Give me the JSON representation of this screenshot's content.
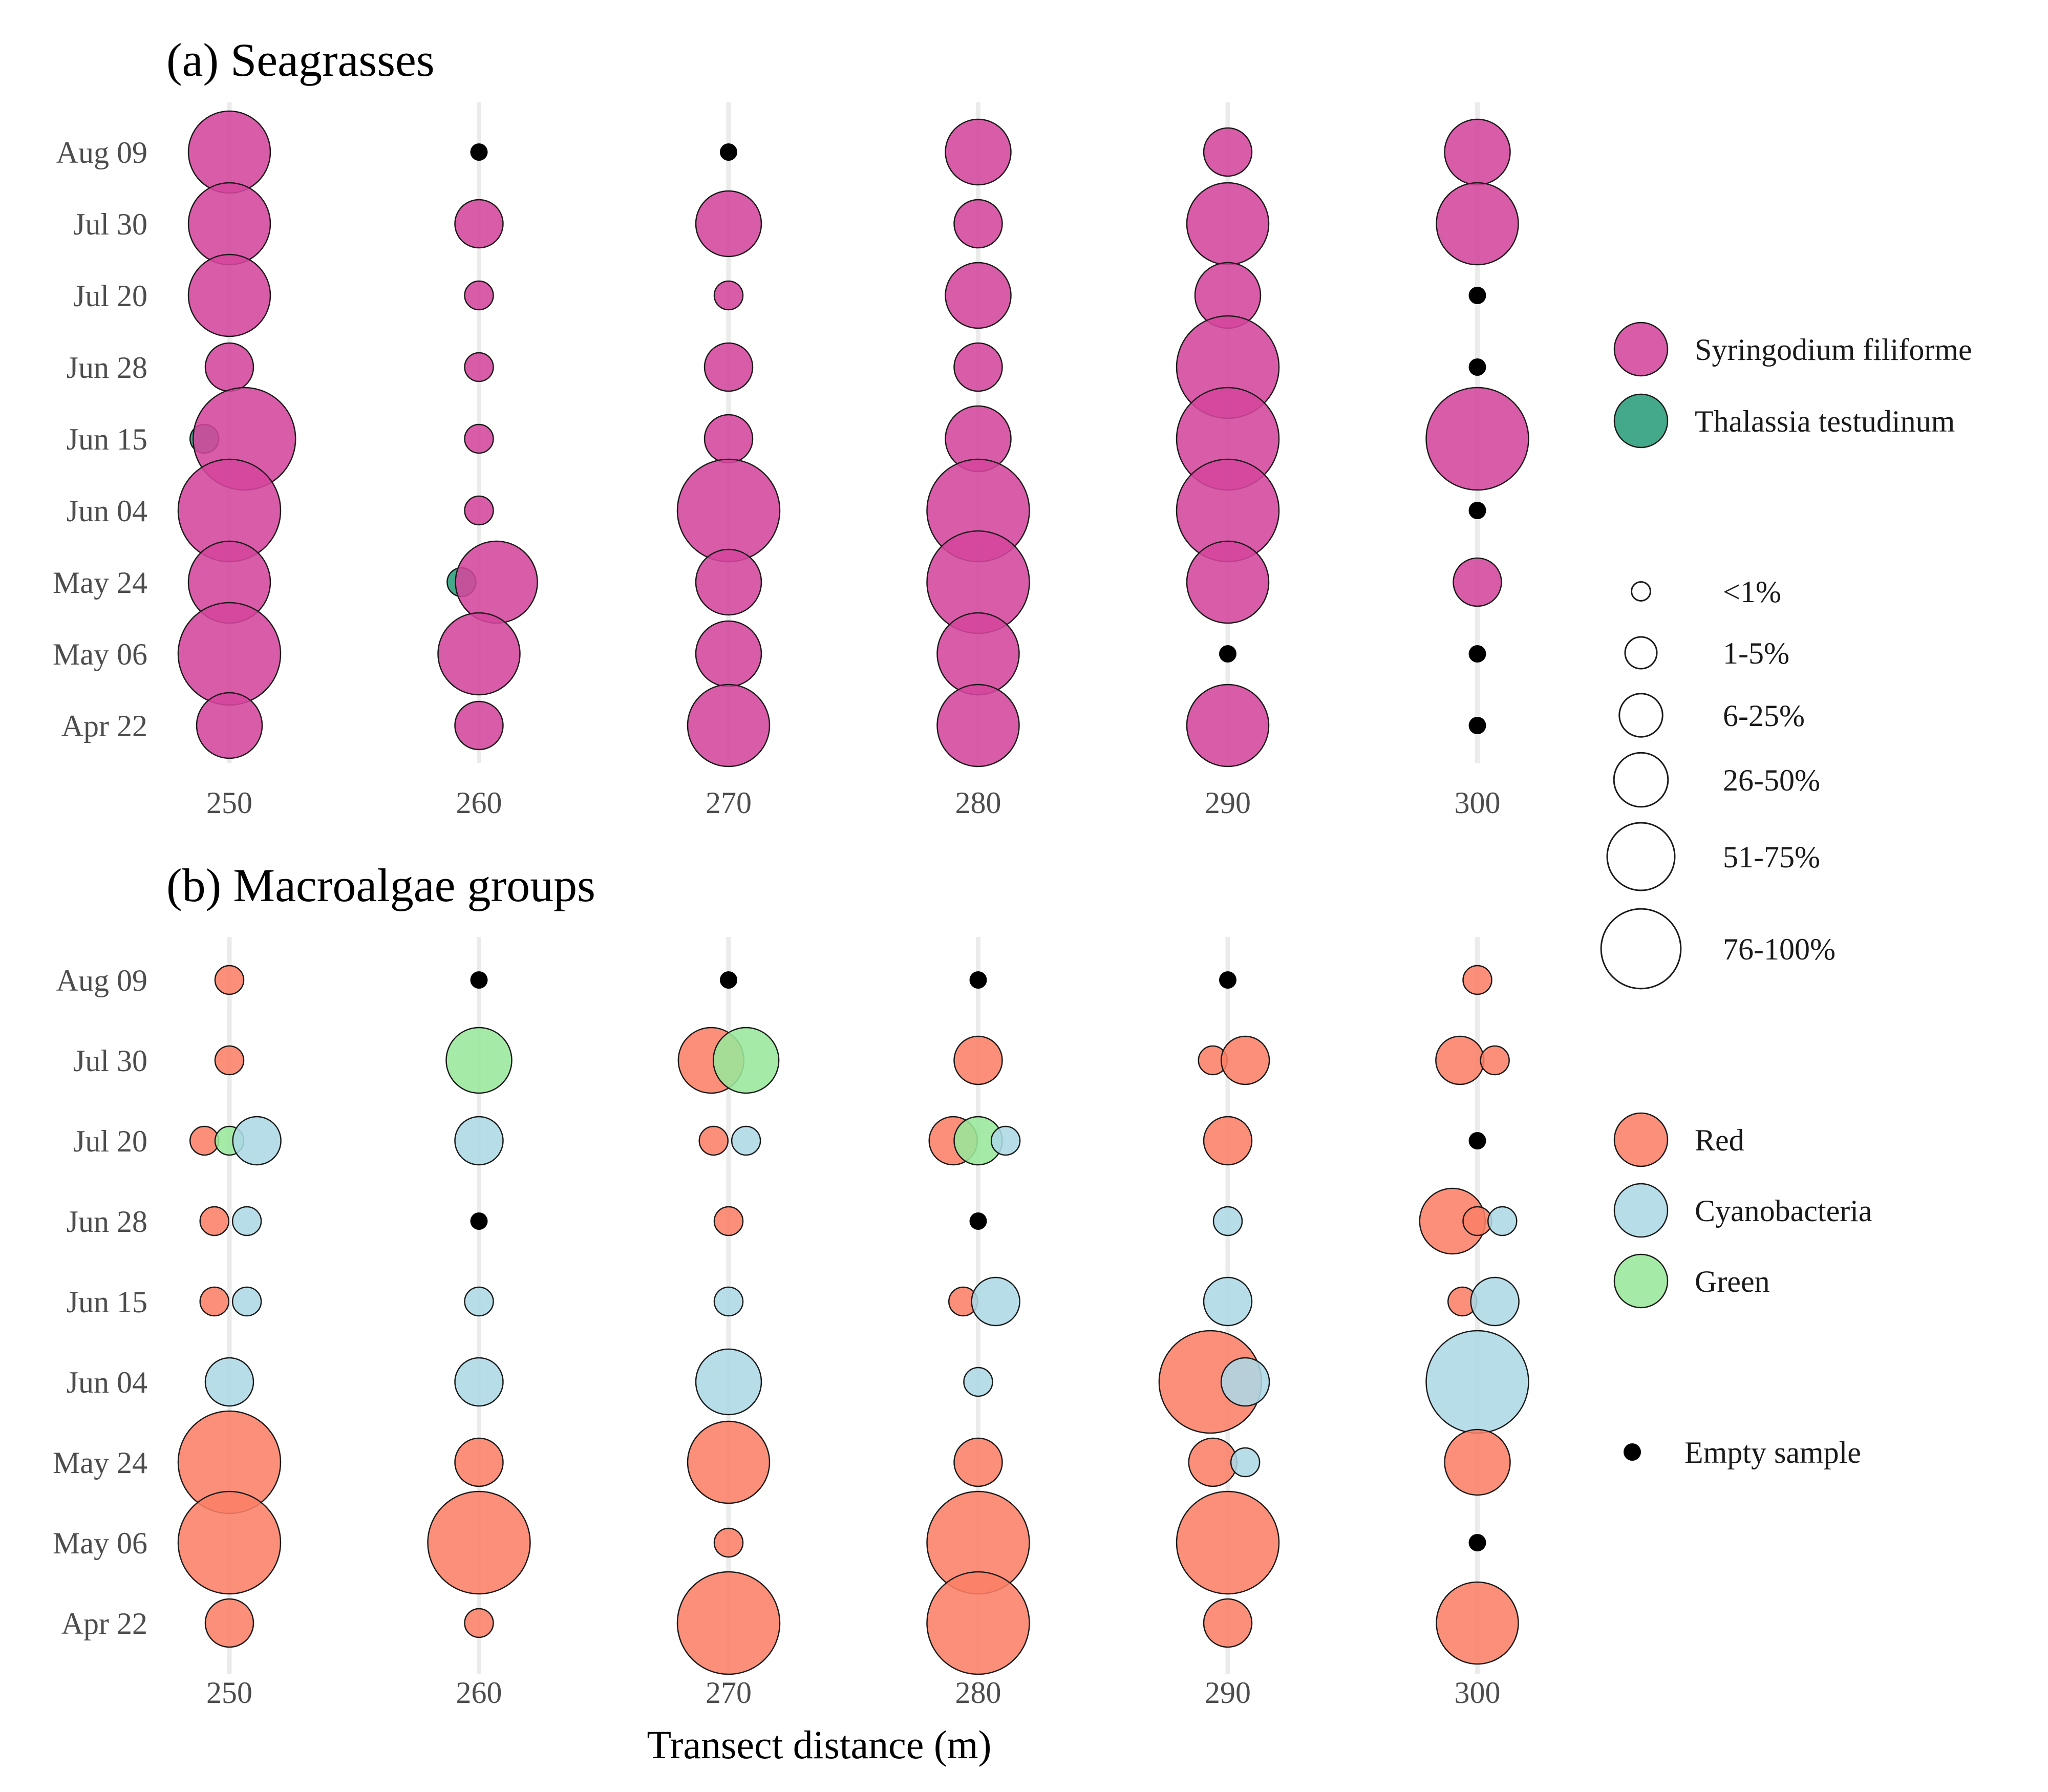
{
  "chart_data": [
    {
      "type": "scatter",
      "title": "(a) Seagrasses",
      "x_ticks": [
        "250",
        "260",
        "270",
        "280",
        "290",
        "300"
      ],
      "y_ticks": [
        "Apr 22",
        "May 06",
        "May 24",
        "Jun 04",
        "Jun 15",
        "Jun 28",
        "Jul 20",
        "Jul 30",
        "Aug 09"
      ],
      "series": [
        {
          "name": "Syringodium filiforme",
          "color": "#d4469c"
        },
        {
          "name": "Thalassia testudinum",
          "color": "#2a9d7a"
        }
      ],
      "points": [
        {
          "date": "Aug 09",
          "x": 250,
          "series": "Syringodium filiforme",
          "cover": "26-50%"
        },
        {
          "date": "Aug 09",
          "x": 260,
          "series": "Empty sample",
          "cover": ""
        },
        {
          "date": "Aug 09",
          "x": 270,
          "series": "Empty sample",
          "cover": ""
        },
        {
          "date": "Aug 09",
          "x": 280,
          "series": "Syringodium filiforme",
          "cover": "6-25%"
        },
        {
          "date": "Aug 09",
          "x": 290,
          "series": "Syringodium filiforme",
          "cover": "1-5%"
        },
        {
          "date": "Aug 09",
          "x": 300,
          "series": "Syringodium filiforme",
          "cover": "6-25%"
        },
        {
          "date": "Jul 30",
          "x": 250,
          "series": "Syringodium filiforme",
          "cover": "26-50%"
        },
        {
          "date": "Jul 30",
          "x": 260,
          "series": "Syringodium filiforme",
          "cover": "1-5%"
        },
        {
          "date": "Jul 30",
          "x": 270,
          "series": "Syringodium filiforme",
          "cover": "6-25%"
        },
        {
          "date": "Jul 30",
          "x": 280,
          "series": "Syringodium filiforme",
          "cover": "1-5%"
        },
        {
          "date": "Jul 30",
          "x": 290,
          "series": "Syringodium filiforme",
          "cover": "26-50%"
        },
        {
          "date": "Jul 30",
          "x": 300,
          "series": "Syringodium filiforme",
          "cover": "26-50%"
        },
        {
          "date": "Jul 20",
          "x": 250,
          "series": "Syringodium filiforme",
          "cover": "26-50%"
        },
        {
          "date": "Jul 20",
          "x": 260,
          "series": "Syringodium filiforme",
          "cover": "<1%"
        },
        {
          "date": "Jul 20",
          "x": 270,
          "series": "Syringodium filiforme",
          "cover": "<1%"
        },
        {
          "date": "Jul 20",
          "x": 280,
          "series": "Syringodium filiforme",
          "cover": "6-25%"
        },
        {
          "date": "Jul 20",
          "x": 290,
          "series": "Syringodium filiforme",
          "cover": "6-25%"
        },
        {
          "date": "Jul 20",
          "x": 300,
          "series": "Empty sample",
          "cover": ""
        },
        {
          "date": "Jun 28",
          "x": 250,
          "series": "Syringodium filiforme",
          "cover": "1-5%"
        },
        {
          "date": "Jun 28",
          "x": 260,
          "series": "Syringodium filiforme",
          "cover": "<1%"
        },
        {
          "date": "Jun 28",
          "x": 270,
          "series": "Syringodium filiforme",
          "cover": "1-5%"
        },
        {
          "date": "Jun 28",
          "x": 280,
          "series": "Syringodium filiforme",
          "cover": "1-5%"
        },
        {
          "date": "Jun 28",
          "x": 290,
          "series": "Syringodium filiforme",
          "cover": "51-75%"
        },
        {
          "date": "Jun 28",
          "x": 300,
          "series": "Empty sample",
          "cover": ""
        },
        {
          "date": "Jun 15",
          "x": 249,
          "series": "Thalassia testudinum",
          "cover": "<1%"
        },
        {
          "date": "Jun 15",
          "x": 250.6,
          "series": "Syringodium filiforme",
          "cover": "51-75%"
        },
        {
          "date": "Jun 15",
          "x": 260,
          "series": "Syringodium filiforme",
          "cover": "<1%"
        },
        {
          "date": "Jun 15",
          "x": 270,
          "series": "Syringodium filiforme",
          "cover": "1-5%"
        },
        {
          "date": "Jun 15",
          "x": 280,
          "series": "Syringodium filiforme",
          "cover": "6-25%"
        },
        {
          "date": "Jun 15",
          "x": 290,
          "series": "Syringodium filiforme",
          "cover": "51-75%"
        },
        {
          "date": "Jun 15",
          "x": 300,
          "series": "Syringodium filiforme",
          "cover": "51-75%"
        },
        {
          "date": "Jun 04",
          "x": 250,
          "series": "Syringodium filiforme",
          "cover": "51-75%"
        },
        {
          "date": "Jun 04",
          "x": 260,
          "series": "Syringodium filiforme",
          "cover": "<1%"
        },
        {
          "date": "Jun 04",
          "x": 270,
          "series": "Syringodium filiforme",
          "cover": "51-75%"
        },
        {
          "date": "Jun 04",
          "x": 280,
          "series": "Syringodium filiforme",
          "cover": "51-75%"
        },
        {
          "date": "Jun 04",
          "x": 290,
          "series": "Syringodium filiforme",
          "cover": "51-75%"
        },
        {
          "date": "Jun 04",
          "x": 300,
          "series": "Empty sample",
          "cover": ""
        },
        {
          "date": "May 24",
          "x": 259.3,
          "series": "Thalassia testudinum",
          "cover": "<1%"
        },
        {
          "date": "May 24",
          "x": 250,
          "series": "Syringodium filiforme",
          "cover": "26-50%"
        },
        {
          "date": "May 24",
          "x": 260.7,
          "series": "Syringodium filiforme",
          "cover": "26-50%"
        },
        {
          "date": "May 24",
          "x": 270,
          "series": "Syringodium filiforme",
          "cover": "6-25%"
        },
        {
          "date": "May 24",
          "x": 280,
          "series": "Syringodium filiforme",
          "cover": "51-75%"
        },
        {
          "date": "May 24",
          "x": 290,
          "series": "Syringodium filiforme",
          "cover": "26-50%"
        },
        {
          "date": "May 24",
          "x": 300,
          "series": "Syringodium filiforme",
          "cover": "1-5%"
        },
        {
          "date": "May 06",
          "x": 250,
          "series": "Syringodium filiforme",
          "cover": "51-75%"
        },
        {
          "date": "May 06",
          "x": 260,
          "series": "Syringodium filiforme",
          "cover": "26-50%"
        },
        {
          "date": "May 06",
          "x": 270,
          "series": "Syringodium filiforme",
          "cover": "6-25%"
        },
        {
          "date": "May 06",
          "x": 280,
          "series": "Syringodium filiforme",
          "cover": "26-50%"
        },
        {
          "date": "May 06",
          "x": 290,
          "series": "Empty sample",
          "cover": ""
        },
        {
          "date": "May 06",
          "x": 300,
          "series": "Empty sample",
          "cover": ""
        },
        {
          "date": "Apr 22",
          "x": 250,
          "series": "Syringodium filiforme",
          "cover": "6-25%"
        },
        {
          "date": "Apr 22",
          "x": 260,
          "series": "Syringodium filiforme",
          "cover": "1-5%"
        },
        {
          "date": "Apr 22",
          "x": 270,
          "series": "Syringodium filiforme",
          "cover": "26-50%"
        },
        {
          "date": "Apr 22",
          "x": 280,
          "series": "Syringodium filiforme",
          "cover": "26-50%"
        },
        {
          "date": "Apr 22",
          "x": 290,
          "series": "Syringodium filiforme",
          "cover": "26-50%"
        },
        {
          "date": "Apr 22",
          "x": 300,
          "series": "Empty sample",
          "cover": ""
        }
      ]
    },
    {
      "type": "scatter",
      "title": "(b) Macroalgae groups",
      "xlabel": "Transect distance (m)",
      "x_ticks": [
        "250",
        "260",
        "270",
        "280",
        "290",
        "300"
      ],
      "y_ticks": [
        "Apr 22",
        "May 06",
        "May 24",
        "Jun 04",
        "Jun 15",
        "Jun 28",
        "Jul 20",
        "Jul 30",
        "Aug 09"
      ],
      "series": [
        {
          "name": "Red",
          "color": "#fa7f66"
        },
        {
          "name": "Cyanobacteria",
          "color": "#add8e6"
        },
        {
          "name": "Green",
          "color": "#98e89b"
        }
      ],
      "points": [
        {
          "date": "Aug 09",
          "x": 250,
          "series": "Red",
          "cover": "<1%"
        },
        {
          "date": "Aug 09",
          "x": 260,
          "series": "Empty sample",
          "cover": ""
        },
        {
          "date": "Aug 09",
          "x": 270,
          "series": "Empty sample",
          "cover": ""
        },
        {
          "date": "Aug 09",
          "x": 280,
          "series": "Empty sample",
          "cover": ""
        },
        {
          "date": "Aug 09",
          "x": 290,
          "series": "Empty sample",
          "cover": ""
        },
        {
          "date": "Aug 09",
          "x": 300,
          "series": "Red",
          "cover": "<1%"
        },
        {
          "date": "Jul 30",
          "x": 250,
          "series": "Red",
          "cover": "<1%"
        },
        {
          "date": "Jul 30",
          "x": 260,
          "series": "Green",
          "cover": "6-25%"
        },
        {
          "date": "Jul 30",
          "x": 269.3,
          "series": "Red",
          "cover": "6-25%"
        },
        {
          "date": "Jul 30",
          "x": 270.7,
          "series": "Green",
          "cover": "6-25%"
        },
        {
          "date": "Jul 30",
          "x": 280,
          "series": "Red",
          "cover": "1-5%"
        },
        {
          "date": "Jul 30",
          "x": 289.4,
          "series": "Red",
          "cover": "<1%"
        },
        {
          "date": "Jul 30",
          "x": 290.7,
          "series": "Red",
          "cover": "1-5%"
        },
        {
          "date": "Jul 30",
          "x": 299.3,
          "series": "Red",
          "cover": "1-5%"
        },
        {
          "date": "Jul 30",
          "x": 300.7,
          "series": "Red",
          "cover": "<1%"
        },
        {
          "date": "Jul 20",
          "x": 249,
          "series": "Red",
          "cover": "<1%"
        },
        {
          "date": "Jul 20",
          "x": 250,
          "series": "Green",
          "cover": "<1%"
        },
        {
          "date": "Jul 20",
          "x": 251.1,
          "series": "Cyanobacteria",
          "cover": "1-5%"
        },
        {
          "date": "Jul 20",
          "x": 260,
          "series": "Cyanobacteria",
          "cover": "1-5%"
        },
        {
          "date": "Jul 20",
          "x": 269.4,
          "series": "Red",
          "cover": "<1%"
        },
        {
          "date": "Jul 20",
          "x": 270.7,
          "series": "Cyanobacteria",
          "cover": "<1%"
        },
        {
          "date": "Jul 20",
          "x": 279,
          "series": "Red",
          "cover": "1-5%"
        },
        {
          "date": "Jul 20",
          "x": 280,
          "series": "Green",
          "cover": "1-5%"
        },
        {
          "date": "Jul 20",
          "x": 281.1,
          "series": "Cyanobacteria",
          "cover": "<1%"
        },
        {
          "date": "Jul 20",
          "x": 290,
          "series": "Red",
          "cover": "1-5%"
        },
        {
          "date": "Jul 20",
          "x": 300,
          "series": "Empty sample",
          "cover": ""
        },
        {
          "date": "Jun 28",
          "x": 249.4,
          "series": "Red",
          "cover": "<1%"
        },
        {
          "date": "Jun 28",
          "x": 250.7,
          "series": "Cyanobacteria",
          "cover": "<1%"
        },
        {
          "date": "Jun 28",
          "x": 260,
          "series": "Empty sample",
          "cover": ""
        },
        {
          "date": "Jun 28",
          "x": 270,
          "series": "Red",
          "cover": "<1%"
        },
        {
          "date": "Jun 28",
          "x": 280,
          "series": "Empty sample",
          "cover": ""
        },
        {
          "date": "Jun 28",
          "x": 290,
          "series": "Cyanobacteria",
          "cover": "<1%"
        },
        {
          "date": "Jun 28",
          "x": 299,
          "series": "Red",
          "cover": "6-25%"
        },
        {
          "date": "Jun 28",
          "x": 300,
          "series": "Red",
          "cover": "<1%"
        },
        {
          "date": "Jun 28",
          "x": 301,
          "series": "Cyanobacteria",
          "cover": "<1%"
        },
        {
          "date": "Jun 15",
          "x": 249.4,
          "series": "Red",
          "cover": "<1%"
        },
        {
          "date": "Jun 15",
          "x": 250.7,
          "series": "Cyanobacteria",
          "cover": "<1%"
        },
        {
          "date": "Jun 15",
          "x": 260,
          "series": "Cyanobacteria",
          "cover": "<1%"
        },
        {
          "date": "Jun 15",
          "x": 270,
          "series": "Cyanobacteria",
          "cover": "<1%"
        },
        {
          "date": "Jun 15",
          "x": 279.4,
          "series": "Red",
          "cover": "<1%"
        },
        {
          "date": "Jun 15",
          "x": 280.7,
          "series": "Cyanobacteria",
          "cover": "1-5%"
        },
        {
          "date": "Jun 15",
          "x": 290,
          "series": "Cyanobacteria",
          "cover": "1-5%"
        },
        {
          "date": "Jun 15",
          "x": 299.4,
          "series": "Red",
          "cover": "<1%"
        },
        {
          "date": "Jun 15",
          "x": 300.7,
          "series": "Cyanobacteria",
          "cover": "1-5%"
        },
        {
          "date": "Jun 04",
          "x": 250,
          "series": "Cyanobacteria",
          "cover": "1-5%"
        },
        {
          "date": "Jun 04",
          "x": 260,
          "series": "Cyanobacteria",
          "cover": "1-5%"
        },
        {
          "date": "Jun 04",
          "x": 270,
          "series": "Cyanobacteria",
          "cover": "6-25%"
        },
        {
          "date": "Jun 04",
          "x": 280,
          "series": "Cyanobacteria",
          "cover": "<1%"
        },
        {
          "date": "Jun 04",
          "x": 289.3,
          "series": "Red",
          "cover": "51-75%"
        },
        {
          "date": "Jun 04",
          "x": 290.7,
          "series": "Cyanobacteria",
          "cover": "1-5%"
        },
        {
          "date": "Jun 04",
          "x": 300,
          "series": "Cyanobacteria",
          "cover": "51-75%"
        },
        {
          "date": "May 24",
          "x": 250,
          "series": "Red",
          "cover": "51-75%"
        },
        {
          "date": "May 24",
          "x": 260,
          "series": "Red",
          "cover": "1-5%"
        },
        {
          "date": "May 24",
          "x": 270,
          "series": "Red",
          "cover": "26-50%"
        },
        {
          "date": "May 24",
          "x": 280,
          "series": "Red",
          "cover": "1-5%"
        },
        {
          "date": "May 24",
          "x": 289.4,
          "series": "Red",
          "cover": "1-5%"
        },
        {
          "date": "May 24",
          "x": 290.7,
          "series": "Cyanobacteria",
          "cover": "<1%"
        },
        {
          "date": "May 24",
          "x": 300,
          "series": "Red",
          "cover": "6-25%"
        },
        {
          "date": "May 06",
          "x": 250,
          "series": "Red",
          "cover": "51-75%"
        },
        {
          "date": "May 06",
          "x": 260,
          "series": "Red",
          "cover": "51-75%"
        },
        {
          "date": "May 06",
          "x": 270,
          "series": "Red",
          "cover": "<1%"
        },
        {
          "date": "May 06",
          "x": 280,
          "series": "Red",
          "cover": "51-75%"
        },
        {
          "date": "May 06",
          "x": 290,
          "series": "Red",
          "cover": "51-75%"
        },
        {
          "date": "May 06",
          "x": 300,
          "series": "Empty sample",
          "cover": ""
        },
        {
          "date": "Apr 22",
          "x": 250,
          "series": "Red",
          "cover": "1-5%"
        },
        {
          "date": "Apr 22",
          "x": 260,
          "series": "Red",
          "cover": "<1%"
        },
        {
          "date": "Apr 22",
          "x": 270,
          "series": "Red",
          "cover": "51-75%"
        },
        {
          "date": "Apr 22",
          "x": 280,
          "series": "Red",
          "cover": "51-75%"
        },
        {
          "date": "Apr 22",
          "x": 290,
          "series": "Red",
          "cover": "1-5%"
        },
        {
          "date": "Apr 22",
          "x": 300,
          "series": "Red",
          "cover": "26-50%"
        }
      ]
    }
  ],
  "legend": {
    "seagrass_items": [
      {
        "label": "Syringodium filiforme",
        "color": "#d4469c"
      },
      {
        "label": "Thalassia testudinum",
        "color": "#2a9d7a"
      }
    ],
    "size_items": [
      "<1%",
      "1-5%",
      "6-25%",
      "26-50%",
      "51-75%",
      "76-100%"
    ],
    "macroalgae_items": [
      {
        "label": "Red",
        "color": "#fa7f66"
      },
      {
        "label": "Cyanobacteria",
        "color": "#add8e6"
      },
      {
        "label": "Green",
        "color": "#98e89b"
      }
    ],
    "empty_label": "Empty sample",
    "empty_color": "#000000"
  }
}
